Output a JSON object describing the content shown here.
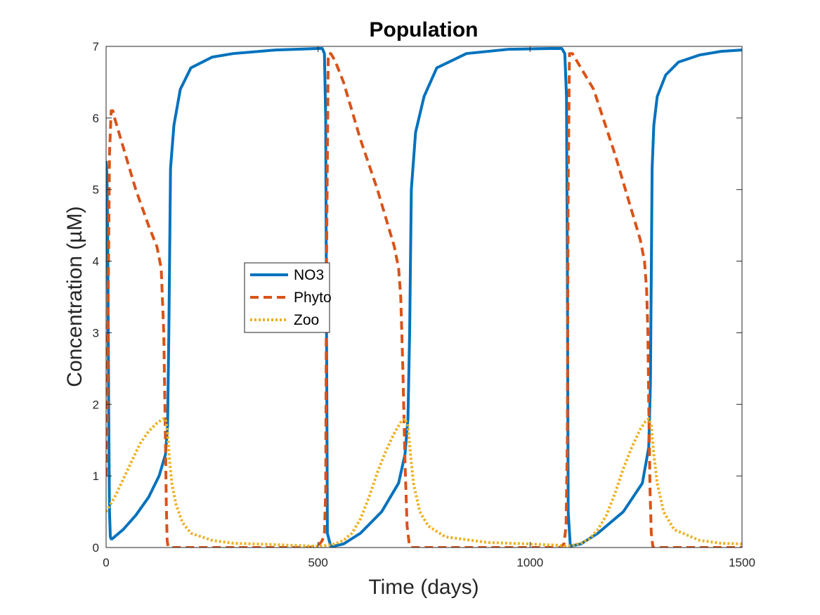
{
  "chart_data": {
    "type": "line",
    "title": "Population",
    "xlabel": "Time (days)",
    "ylabel": "Concentration (µM)",
    "xlim": [
      0,
      1500
    ],
    "ylim": [
      0,
      7
    ],
    "xticks": [
      0,
      500,
      1000,
      1500
    ],
    "yticks": [
      0,
      1,
      2,
      3,
      4,
      5,
      6,
      7
    ],
    "grid": false,
    "legend_position": "center-left",
    "series": [
      {
        "name": "NO3",
        "color": "#0072BD",
        "style": "solid",
        "x": [
          0,
          2,
          4,
          6,
          8,
          10,
          12,
          14,
          20,
          40,
          70,
          100,
          125,
          140,
          145,
          148,
          152,
          160,
          175,
          200,
          250,
          300,
          400,
          500,
          510,
          515,
          518,
          520,
          522,
          530,
          560,
          600,
          650,
          690,
          705,
          712,
          716,
          720,
          730,
          750,
          780,
          850,
          950,
          1050,
          1075,
          1082,
          1086,
          1088,
          1090,
          1095,
          1120,
          1160,
          1220,
          1265,
          1280,
          1284,
          1288,
          1292,
          1300,
          1320,
          1350,
          1400,
          1450,
          1500
        ],
        "y": [
          5.4,
          5.2,
          4.2,
          2.0,
          0.5,
          0.15,
          0.12,
          0.12,
          0.15,
          0.25,
          0.45,
          0.7,
          1.0,
          1.3,
          1.7,
          3.0,
          5.3,
          5.9,
          6.4,
          6.7,
          6.85,
          6.9,
          6.95,
          6.97,
          6.97,
          6.9,
          6.0,
          3.0,
          0.2,
          0.01,
          0.05,
          0.2,
          0.5,
          0.9,
          1.3,
          1.8,
          3.0,
          5.0,
          5.8,
          6.3,
          6.7,
          6.9,
          6.96,
          6.97,
          6.97,
          6.9,
          6.3,
          4.0,
          0.5,
          0.02,
          0.05,
          0.2,
          0.5,
          0.9,
          1.4,
          2.3,
          5.3,
          5.9,
          6.3,
          6.6,
          6.78,
          6.88,
          6.93,
          6.95
        ]
      },
      {
        "name": "Phyto",
        "color": "#D95319",
        "style": "dashed",
        "x": [
          0,
          2,
          5,
          8,
          12,
          16,
          20,
          40,
          70,
          100,
          120,
          130,
          136,
          140,
          142,
          144,
          146,
          150,
          200,
          300,
          400,
          480,
          500,
          510,
          515,
          518,
          520,
          524,
          530,
          540,
          560,
          600,
          640,
          660,
          680,
          690,
          695,
          700,
          705,
          710,
          715,
          720,
          800,
          900,
          1000,
          1070,
          1080,
          1085,
          1088,
          1090,
          1093,
          1100,
          1150,
          1200,
          1240,
          1260,
          1270,
          1275,
          1278,
          1280,
          1283,
          1286,
          1290,
          1350,
          1450,
          1500
        ],
        "y": [
          1.0,
          1.5,
          3.5,
          5.5,
          6.1,
          6.1,
          6.0,
          5.6,
          5.0,
          4.5,
          4.2,
          3.9,
          3.0,
          1.5,
          0.6,
          0.1,
          0.02,
          0.0,
          0.0,
          0.0,
          0.0,
          0.0,
          0.02,
          0.1,
          0.2,
          0.8,
          4.0,
          6.9,
          6.9,
          6.8,
          6.5,
          5.7,
          5.0,
          4.6,
          4.2,
          3.9,
          3.5,
          2.5,
          1.2,
          0.3,
          0.05,
          0.0,
          0.0,
          0.0,
          0.0,
          0.0,
          0.05,
          0.3,
          1.5,
          5.0,
          6.9,
          6.9,
          6.4,
          5.5,
          4.7,
          4.3,
          4.0,
          3.6,
          3.0,
          2.0,
          0.8,
          0.2,
          0.0,
          0.0,
          0.0,
          0.0
        ]
      },
      {
        "name": "Zoo",
        "color": "#EDB120",
        "style": "dotted",
        "x": [
          0,
          20,
          40,
          60,
          80,
          100,
          120,
          135,
          140,
          145,
          150,
          155,
          165,
          180,
          200,
          250,
          300,
          400,
          490,
          510,
          520,
          540,
          560,
          580,
          600,
          620,
          640,
          660,
          680,
          695,
          705,
          712,
          718,
          725,
          740,
          760,
          800,
          900,
          1000,
          1070,
          1085,
          1100,
          1120,
          1140,
          1160,
          1180,
          1200,
          1220,
          1240,
          1260,
          1272,
          1280,
          1286,
          1292,
          1300,
          1315,
          1340,
          1400,
          1450,
          1500
        ],
        "y": [
          0.5,
          0.7,
          0.95,
          1.2,
          1.45,
          1.62,
          1.74,
          1.8,
          1.8,
          1.6,
          1.2,
          0.9,
          0.6,
          0.35,
          0.2,
          0.1,
          0.06,
          0.04,
          0.02,
          0.02,
          0.03,
          0.05,
          0.1,
          0.2,
          0.4,
          0.7,
          1.05,
          1.35,
          1.6,
          1.75,
          1.8,
          1.7,
          1.3,
          0.9,
          0.5,
          0.3,
          0.15,
          0.07,
          0.05,
          0.03,
          0.02,
          0.03,
          0.06,
          0.12,
          0.25,
          0.45,
          0.75,
          1.1,
          1.4,
          1.65,
          1.76,
          1.8,
          1.7,
          1.3,
          0.9,
          0.5,
          0.25,
          0.1,
          0.06,
          0.05
        ]
      }
    ]
  }
}
